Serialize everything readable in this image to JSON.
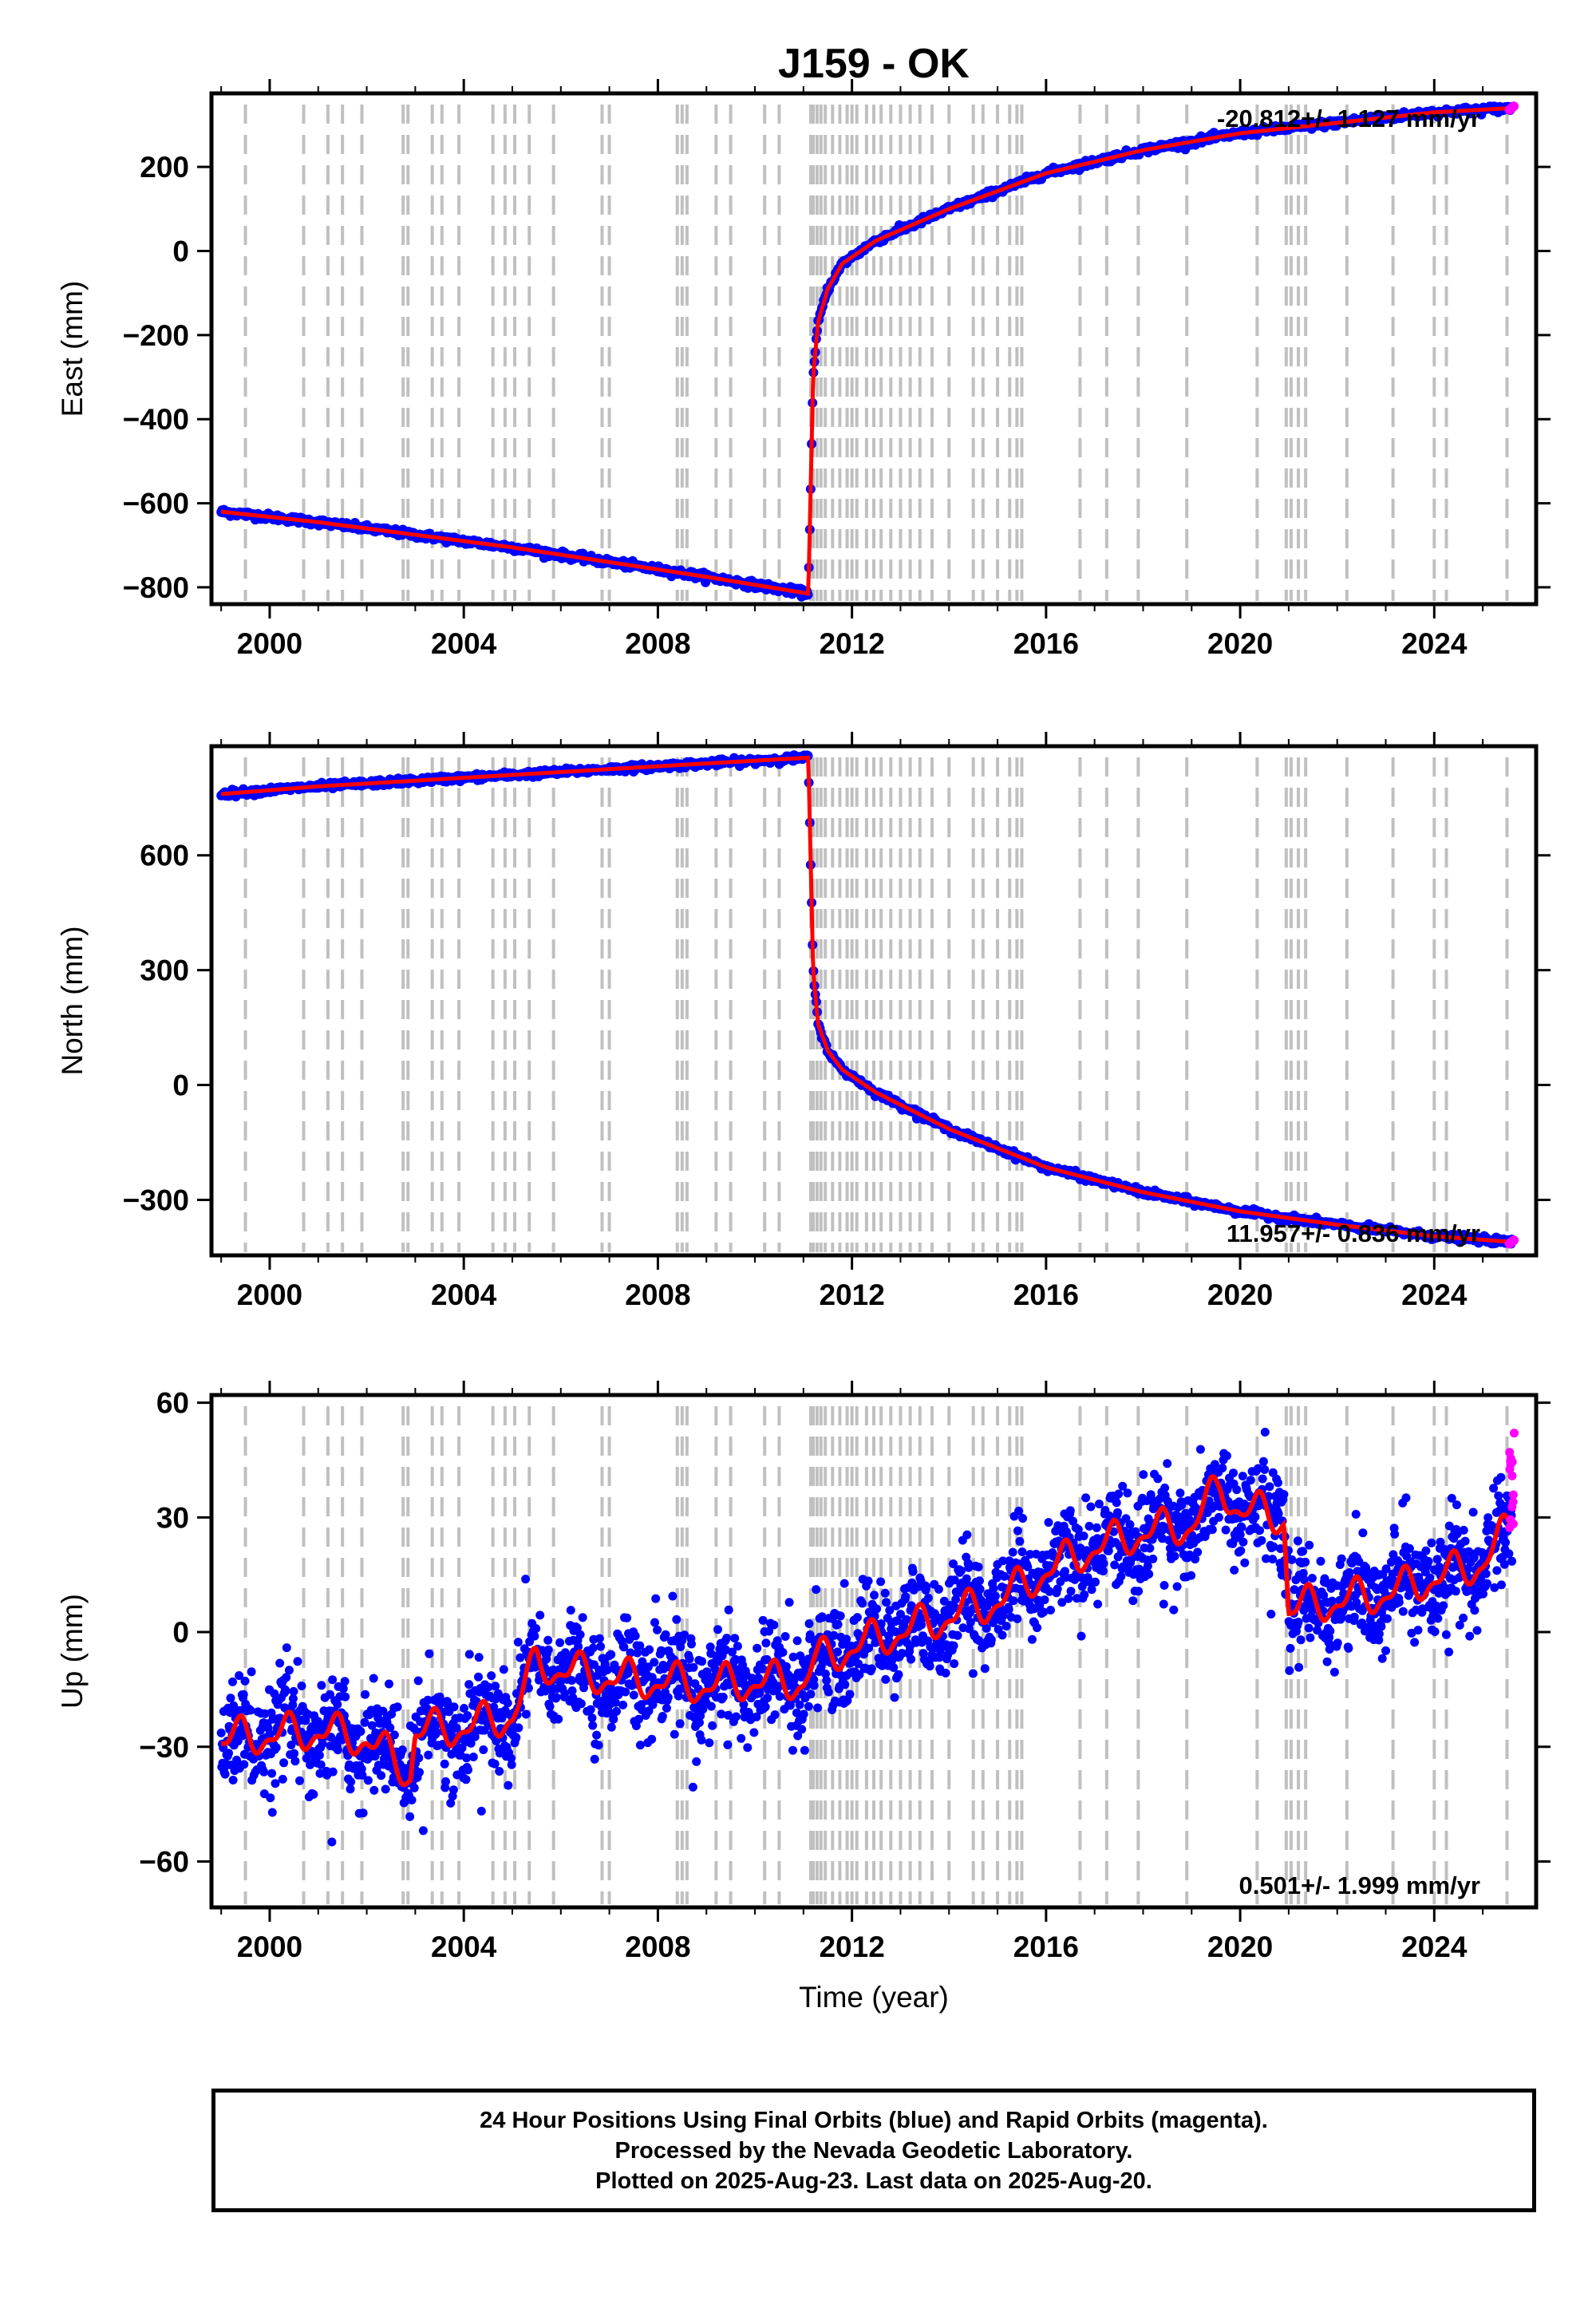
{
  "title": "J159 - OK",
  "caption": [
    "24 Hour Positions Using Final Orbits (blue) and Rapid Orbits (magenta).",
    "Processed by the Nevada Geodetic Laboratory.",
    "Plotted on 2025-Aug-23. Last data on 2025-Aug-20."
  ],
  "colors": {
    "final": "#0000ff",
    "rapid": "#ff00ff",
    "model": "#ff0000",
    "events": "#c0c0c0"
  },
  "chart_data": [
    {
      "type": "scatter",
      "xlabel": "",
      "ylabel": "East (mm)",
      "xlim": [
        1998.8,
        2026.1
      ],
      "ylim": [
        -840,
        375
      ],
      "xticks": [
        2000,
        2004,
        2008,
        2012,
        2016,
        2020,
        2024
      ],
      "yticks": [
        200,
        0,
        -200,
        -400,
        -600,
        -800
      ],
      "rate_text": "-20.812+/- 1.127 mm/yr",
      "rate_position": "top-right",
      "series": [
        {
          "name": "",
          "x": [
            1999.0,
            2001.0,
            2003.0,
            2005.0,
            2007.0,
            2009.0,
            2011.1,
            2011.2,
            2011.3,
            2011.5,
            2011.8,
            2012.5,
            2014.0,
            2016.0,
            2018.0,
            2020.0,
            2022.0,
            2024.0,
            2025.6
          ],
          "y": [
            -620,
            -645,
            -675,
            -705,
            -740,
            -775,
            -815,
            -300,
            -170,
            -90,
            -30,
            25,
            100,
            185,
            240,
            280,
            305,
            330,
            340
          ]
        }
      ]
    },
    {
      "type": "scatter",
      "xlabel": "",
      "ylabel": "North (mm)",
      "xlim": [
        1998.8,
        2026.1
      ],
      "ylim": [
        -445,
        885
      ],
      "xticks": [
        2000,
        2004,
        2008,
        2012,
        2016,
        2020,
        2024
      ],
      "yticks": [
        600,
        300,
        0,
        -300
      ],
      "rate_text": "11.957+/- 0.836 mm/yr",
      "rate_position": "bottom-right",
      "series": [
        {
          "name": "",
          "x": [
            1999.0,
            2001.0,
            2003.0,
            2005.0,
            2007.0,
            2009.0,
            2011.1,
            2011.2,
            2011.3,
            2011.5,
            2011.8,
            2012.5,
            2014.0,
            2016.0,
            2018.0,
            2020.0,
            2022.0,
            2024.0,
            2025.6
          ],
          "y": [
            760,
            780,
            795,
            810,
            825,
            840,
            855,
            300,
            160,
            90,
            40,
            -20,
            -115,
            -215,
            -280,
            -330,
            -365,
            -395,
            -410
          ]
        }
      ]
    },
    {
      "type": "scatter",
      "xlabel": "Time (year)",
      "ylabel": "Up (mm)",
      "xlim": [
        1998.8,
        2026.1
      ],
      "ylim": [
        -72,
        62
      ],
      "xticks": [
        2000,
        2004,
        2008,
        2012,
        2016,
        2020,
        2024
      ],
      "yticks": [
        60,
        30,
        0,
        -30,
        -60
      ],
      "rate_text": "0.501+/- 1.999 mm/yr",
      "rate_position": "bottom-right",
      "series": [
        {
          "name": "",
          "x": [
            1999.0,
            2000.0,
            2001.0,
            2002.0,
            2002.9,
            2003.0,
            2004.0,
            2005.0,
            2005.5,
            2006.0,
            2007.0,
            2008.0,
            2009.0,
            2010.0,
            2011.0,
            2011.2,
            2012.0,
            2013.0,
            2014.0,
            2015.0,
            2016.0,
            2017.0,
            2018.0,
            2019.0,
            2019.6,
            2020.0,
            2020.9,
            2021.0,
            2022.0,
            2023.0,
            2024.0,
            2025.0,
            2025.6
          ],
          "y": [
            -28,
            -27,
            -26,
            -28,
            -37,
            -26,
            -25,
            -22,
            -8,
            -10,
            -12,
            -13,
            -14,
            -13,
            -13,
            -8,
            -4,
            0,
            4,
            8,
            16,
            22,
            26,
            28,
            38,
            32,
            30,
            6,
            8,
            10,
            14,
            18,
            28
          ]
        }
      ],
      "rapid_tail": {
        "x": [
          2025.55,
          2025.65
        ],
        "y": [
          25,
          55
        ]
      }
    }
  ],
  "event_years": [
    1999.5,
    2000.7,
    2001.2,
    2001.5,
    2001.9,
    2002.75,
    2002.85,
    2003.35,
    2003.55,
    2003.9,
    2004.6,
    2004.85,
    2005.05,
    2005.35,
    2005.85,
    2006.85,
    2007.0,
    2008.4,
    2008.5,
    2008.6,
    2009.2,
    2009.5,
    2010.2,
    2010.5,
    2011.15,
    2011.2,
    2011.28,
    2011.36,
    2011.45,
    2011.6,
    2011.75,
    2011.9,
    2012.0,
    2012.1,
    2012.3,
    2012.45,
    2012.6,
    2012.8,
    2013.0,
    2013.2,
    2013.4,
    2013.65,
    2014.0,
    2014.5,
    2014.7,
    2015.0,
    2015.25,
    2015.4,
    2015.5,
    2016.7,
    2017.25,
    2017.9,
    2018.9,
    2020.35,
    2020.95,
    2021.05,
    2021.2,
    2021.35,
    2022.2,
    2023.15,
    2024.0,
    2024.25,
    2025.5
  ]
}
